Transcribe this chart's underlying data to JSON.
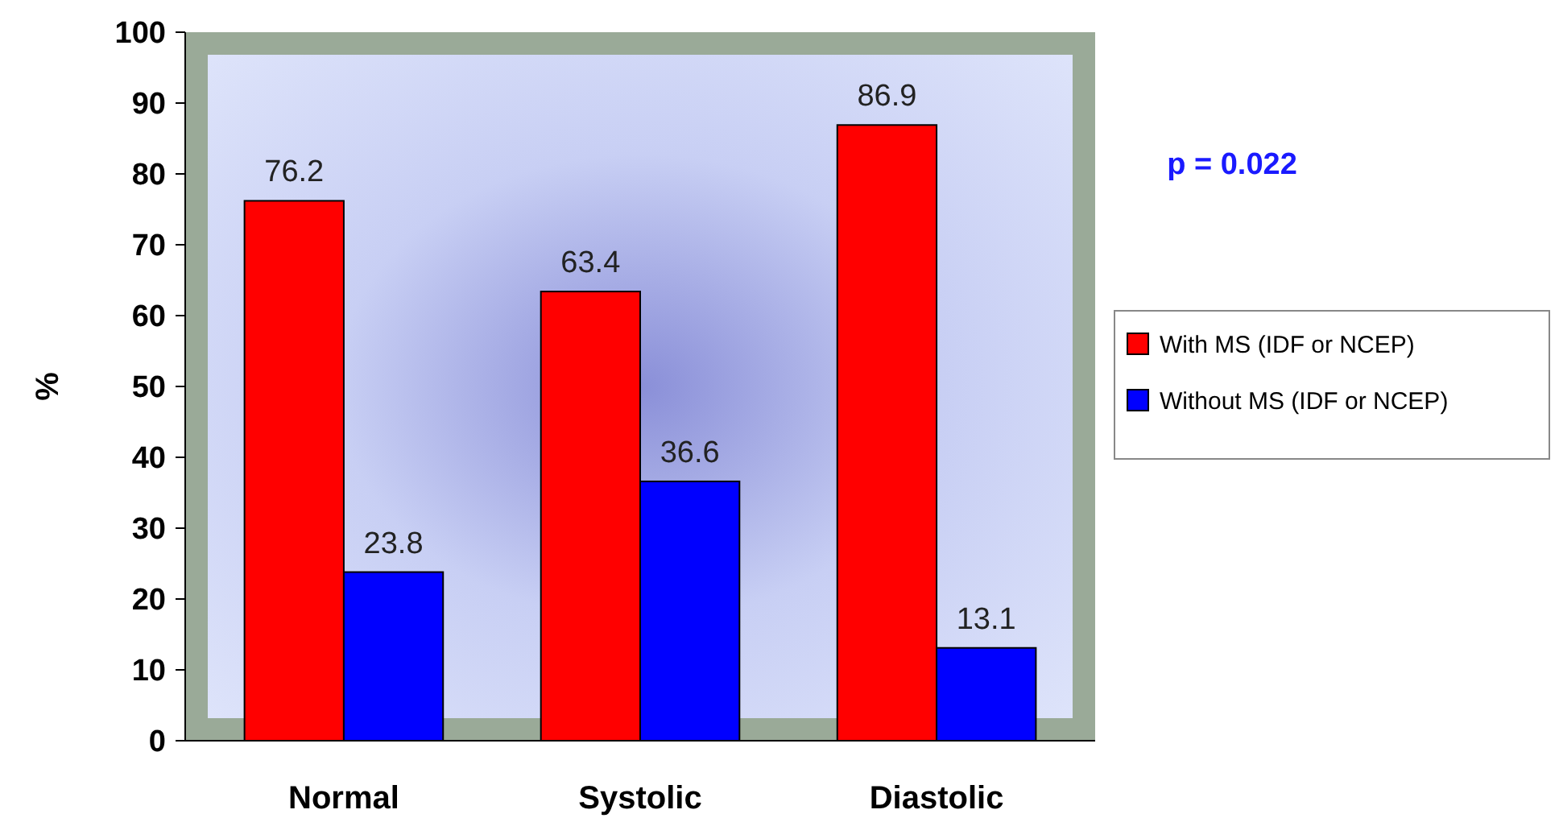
{
  "chart_data": {
    "type": "bar",
    "ylabel": "%",
    "categories": [
      "Normal",
      "Systolic",
      "Diastolic"
    ],
    "series": [
      {
        "name": "With MS (IDF or NCEP)",
        "color": "#ff0000",
        "values": [
          76.2,
          63.4,
          86.9
        ]
      },
      {
        "name": "Without MS (IDF or NCEP)",
        "color": "#0000ff",
        "values": [
          23.8,
          36.6,
          13.1
        ]
      }
    ],
    "ylim": [
      0,
      100
    ],
    "yticks": [
      0,
      10,
      20,
      30,
      40,
      50,
      60,
      70,
      80,
      90,
      100
    ],
    "data_labels": true,
    "legend": "right",
    "annotations": [
      "p = 0.022"
    ]
  }
}
